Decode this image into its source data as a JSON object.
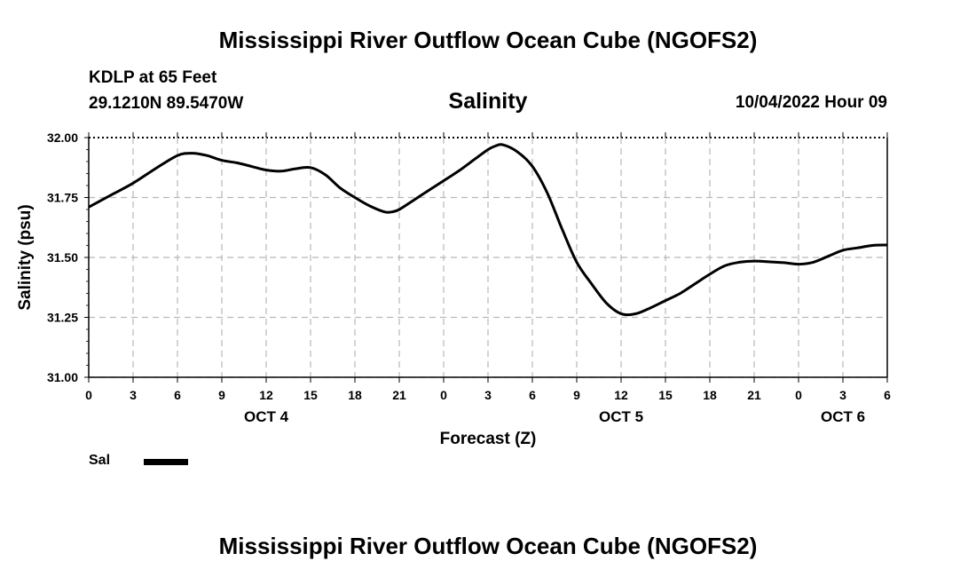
{
  "page": {
    "title_top": "Mississippi River Outflow Ocean Cube (NGOFS2)",
    "title_bottom": "Mississippi River Outflow Ocean Cube (NGOFS2)",
    "station_name": "KDLP at 65 Feet",
    "station_coords": "29.1210N  89.5470W",
    "variable_title": "Salinity",
    "datetime": "10/04/2022 Hour 09"
  },
  "chart_data": {
    "type": "line",
    "title": "Salinity",
    "xlabel": "Forecast (Z)",
    "ylabel": "Salinity (psu)",
    "ylim": [
      31.0,
      32.0
    ],
    "xlim": [
      0,
      54
    ],
    "grid": true,
    "y_ticks": [
      "31.00",
      "31.25",
      "31.50",
      "31.75",
      "32.00"
    ],
    "y_tick_values": [
      31.0,
      31.25,
      31.5,
      31.75,
      32.0
    ],
    "x_tick_labels": [
      "0",
      "3",
      "6",
      "9",
      "12",
      "15",
      "18",
      "21",
      "0",
      "3",
      "6",
      "9",
      "12",
      "15",
      "18",
      "21",
      "0",
      "3",
      "6"
    ],
    "day_labels": [
      {
        "label": "OCT 4",
        "hour": 12
      },
      {
        "label": "OCT 5",
        "hour": 36
      },
      {
        "label": "OCT 6",
        "hour": 51
      }
    ],
    "legend": [
      {
        "name": "Sal",
        "color": "#000000"
      }
    ],
    "series": [
      {
        "name": "Sal",
        "x": [
          0,
          1.5,
          3,
          4.5,
          6,
          7,
          8,
          9,
          10,
          11,
          12,
          13,
          14,
          15,
          16,
          17,
          18,
          19,
          20,
          20.5,
          21,
          22,
          23,
          24,
          25,
          26,
          27,
          27.5,
          28,
          29,
          30,
          31,
          32,
          33,
          34,
          35,
          36,
          37,
          38,
          39,
          40,
          41,
          42,
          43,
          44,
          45,
          46,
          47,
          48,
          49,
          50,
          51,
          52,
          53,
          54
        ],
        "values": [
          31.71,
          31.76,
          31.81,
          31.87,
          31.925,
          31.935,
          31.925,
          31.905,
          31.895,
          31.88,
          31.865,
          31.86,
          31.87,
          31.875,
          31.845,
          31.79,
          31.75,
          31.715,
          31.69,
          31.69,
          31.7,
          31.74,
          31.78,
          31.82,
          31.86,
          31.905,
          31.95,
          31.965,
          31.97,
          31.94,
          31.88,
          31.77,
          31.62,
          31.48,
          31.39,
          31.31,
          31.265,
          31.265,
          31.29,
          31.32,
          31.35,
          31.39,
          31.43,
          31.465,
          31.48,
          31.485,
          31.482,
          31.478,
          31.472,
          31.48,
          31.505,
          31.53,
          31.54,
          31.55,
          31.552
        ]
      }
    ]
  }
}
